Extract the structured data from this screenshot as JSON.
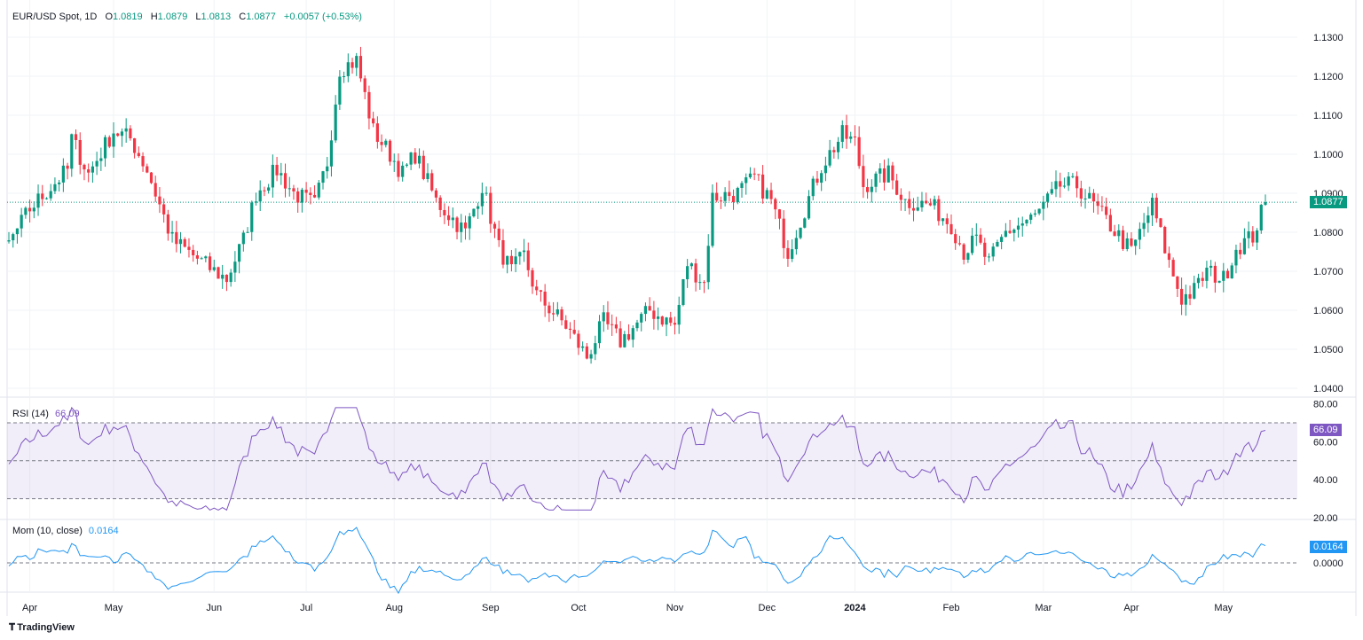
{
  "header": {
    "symbol": "EUR/USD Spot, 1D",
    "open_label": "O",
    "open": "1.0819",
    "high_label": "H",
    "high": "1.0879",
    "low_label": "L",
    "low": "1.0813",
    "close_label": "C",
    "close": "1.0877",
    "change": "+0.0057 (+0.53%)"
  },
  "colors": {
    "up": "#089981",
    "down": "#f23645",
    "rsi": "#7e57c2",
    "mom": "#2196f3"
  },
  "rsi": {
    "label": "RSI (14)",
    "value": "66.09"
  },
  "mom": {
    "label": "Mom (10, close)",
    "value": "0.0164"
  },
  "footer": {
    "brand": "TradingView"
  },
  "chart_data": {
    "type": "candlestick",
    "title": "EUR/USD Spot, 1D",
    "price_ticks": [
      "1.1300",
      "1.1200",
      "1.1100",
      "1.1000",
      "1.0900",
      "1.0800",
      "1.0700",
      "1.0600",
      "1.0500",
      "1.0400"
    ],
    "ylim": [
      1.04,
      1.13
    ],
    "last_price": "1.0877",
    "rsi_ticks": [
      "80.00",
      "60.00",
      "40.00",
      "20.00"
    ],
    "rsi_band": [
      30,
      70
    ],
    "mom_ticks": [
      "0.0000"
    ],
    "x_labels": [
      {
        "t": "Apr",
        "d": 5
      },
      {
        "t": "May",
        "d": 25
      },
      {
        "t": "Jun",
        "d": 49
      },
      {
        "t": "Jul",
        "d": 71
      },
      {
        "t": "Aug",
        "d": 92
      },
      {
        "t": "Sep",
        "d": 115
      },
      {
        "t": "Oct",
        "d": 136
      },
      {
        "t": "Nov",
        "d": 159
      },
      {
        "t": "Dec",
        "d": 181
      },
      {
        "t": "2024",
        "d": 202
      },
      {
        "t": "Feb",
        "d": 225
      },
      {
        "t": "Mar",
        "d": 247
      },
      {
        "t": "Apr",
        "d": 268
      },
      {
        "t": "May",
        "d": 290
      }
    ],
    "close_path_day_price": [
      [
        0,
        1.077
      ],
      [
        5,
        1.086
      ],
      [
        14,
        1.096
      ],
      [
        15,
        1.104
      ],
      [
        19,
        1.095
      ],
      [
        25,
        1.106
      ],
      [
        29,
        1.104
      ],
      [
        33,
        1.096
      ],
      [
        39,
        1.078
      ],
      [
        49,
        1.07
      ],
      [
        52,
        1.068
      ],
      [
        56,
        1.078
      ],
      [
        59,
        1.09
      ],
      [
        64,
        1.096
      ],
      [
        68,
        1.09
      ],
      [
        73,
        1.087
      ],
      [
        76,
        1.098
      ],
      [
        79,
        1.122
      ],
      [
        83,
        1.124
      ],
      [
        87,
        1.106
      ],
      [
        91,
        1.1
      ],
      [
        94,
        1.095
      ],
      [
        97,
        1.1
      ],
      [
        102,
        1.088
      ],
      [
        109,
        1.08
      ],
      [
        113,
        1.092
      ],
      [
        117,
        1.076
      ],
      [
        120,
        1.07
      ],
      [
        123,
        1.074
      ],
      [
        126,
        1.064
      ],
      [
        133,
        1.056
      ],
      [
        138,
        1.048
      ],
      [
        142,
        1.057
      ],
      [
        146,
        1.052
      ],
      [
        153,
        1.06
      ],
      [
        159,
        1.056
      ],
      [
        162,
        1.072
      ],
      [
        166,
        1.067
      ],
      [
        168,
        1.089
      ],
      [
        174,
        1.09
      ],
      [
        178,
        1.094
      ],
      [
        182,
        1.088
      ],
      [
        186,
        1.075
      ],
      [
        190,
        1.086
      ],
      [
        194,
        1.097
      ],
      [
        199,
        1.105
      ],
      [
        202,
        1.103
      ],
      [
        204,
        1.092
      ],
      [
        210,
        1.095
      ],
      [
        214,
        1.088
      ],
      [
        220,
        1.087
      ],
      [
        225,
        1.082
      ],
      [
        228,
        1.075
      ],
      [
        231,
        1.078
      ],
      [
        234,
        1.072
      ],
      [
        238,
        1.08
      ],
      [
        245,
        1.084
      ],
      [
        251,
        1.092
      ],
      [
        255,
        1.092
      ],
      [
        262,
        1.083
      ],
      [
        268,
        1.075
      ],
      [
        273,
        1.087
      ],
      [
        277,
        1.072
      ],
      [
        280,
        1.063
      ],
      [
        283,
        1.065
      ],
      [
        286,
        1.07
      ],
      [
        290,
        1.068
      ],
      [
        293,
        1.076
      ],
      [
        297,
        1.079
      ],
      [
        300,
        1.0877
      ]
    ]
  }
}
